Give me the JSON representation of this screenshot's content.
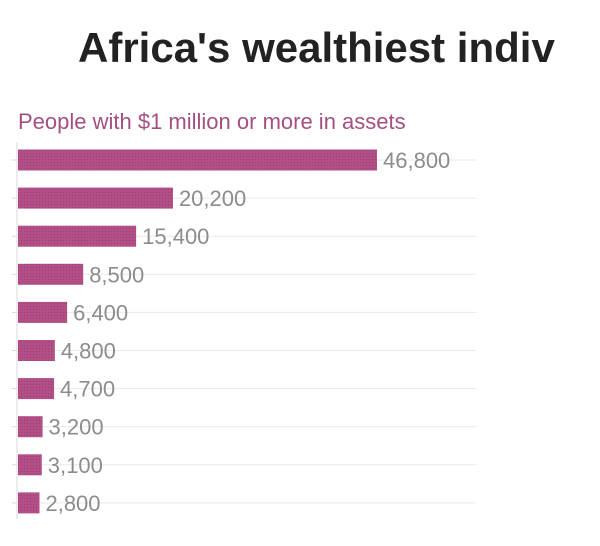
{
  "chart_data": {
    "type": "bar",
    "orientation": "horizontal",
    "title": "Africa's wealthiest indiv",
    "subtitle": "People with $1 million or more in assets",
    "values": [
      46800,
      20200,
      15400,
      8500,
      6400,
      4800,
      4700,
      3200,
      3100,
      2800
    ],
    "value_labels": [
      "46,800",
      "20,200",
      "15,400",
      "8,500",
      "6,400",
      "4,800",
      "4,700",
      "3,200",
      "3,100",
      "2,800"
    ],
    "xlim": [
      0,
      60000
    ],
    "grid": true,
    "legend": "none"
  },
  "colors": {
    "bar": "#b14f86",
    "bar_hatch": "#9a3f72",
    "subtitle": "#a44f82",
    "title": "#222222",
    "value_label": "#8c8c8c",
    "grid": "#e9e9e9"
  }
}
